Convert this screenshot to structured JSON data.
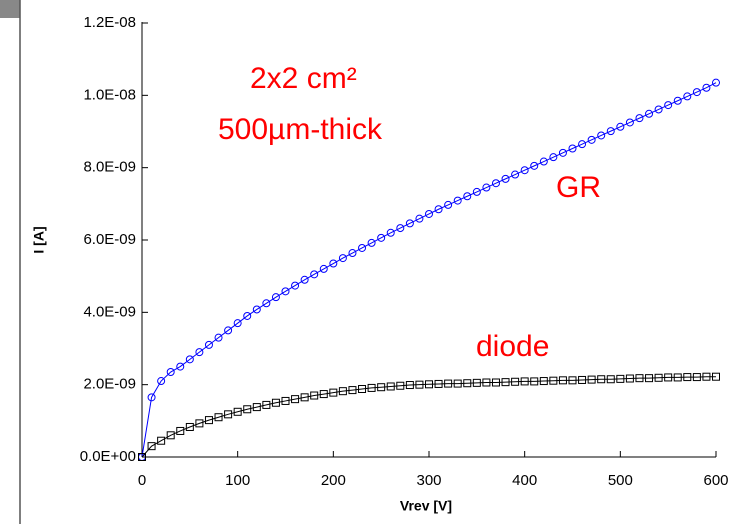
{
  "chart_data": {
    "type": "line",
    "x_label": "Vrev [V]",
    "y_label": "I [A]",
    "x": [
      0,
      10,
      20,
      30,
      40,
      50,
      60,
      70,
      80,
      90,
      100,
      110,
      120,
      130,
      140,
      150,
      160,
      170,
      180,
      190,
      200,
      210,
      220,
      230,
      240,
      250,
      260,
      270,
      280,
      290,
      300,
      310,
      320,
      330,
      340,
      350,
      360,
      370,
      380,
      390,
      400,
      410,
      420,
      430,
      440,
      450,
      460,
      470,
      480,
      490,
      500,
      510,
      520,
      530,
      540,
      550,
      560,
      570,
      580,
      590,
      600
    ],
    "series": [
      {
        "name": "GR",
        "color": "#0000ff",
        "marker": "circle",
        "values": [
          0,
          1.65e-09,
          2.1e-09,
          2.35e-09,
          2.5e-09,
          2.7e-09,
          2.9e-09,
          3.1e-09,
          3.3e-09,
          3.5e-09,
          3.7e-09,
          3.9e-09,
          4.08e-09,
          4.25e-09,
          4.42e-09,
          4.58e-09,
          4.74e-09,
          4.9e-09,
          5.05e-09,
          5.2e-09,
          5.35e-09,
          5.5e-09,
          5.64e-09,
          5.78e-09,
          5.92e-09,
          6.06e-09,
          6.2e-09,
          6.33e-09,
          6.46e-09,
          6.59e-09,
          6.72e-09,
          6.85e-09,
          6.97e-09,
          7.09e-09,
          7.21e-09,
          7.33e-09,
          7.45e-09,
          7.57e-09,
          7.69e-09,
          7.81e-09,
          7.93e-09,
          8.05e-09,
          8.17e-09,
          8.29e-09,
          8.41e-09,
          8.53e-09,
          8.65e-09,
          8.77e-09,
          8.89e-09,
          9.01e-09,
          9.13e-09,
          9.25e-09,
          9.37e-09,
          9.49e-09,
          9.61e-09,
          9.73e-09,
          9.85e-09,
          9.97e-09,
          1.009e-08,
          1.021e-08,
          1.035e-08
        ]
      },
      {
        "name": "diode",
        "color": "#000000",
        "marker": "square",
        "values": [
          0,
          3e-10,
          4.5e-10,
          6e-10,
          7.2e-10,
          8.3e-10,
          9.3e-10,
          1.02e-09,
          1.1e-09,
          1.18e-09,
          1.25e-09,
          1.32e-09,
          1.38e-09,
          1.44e-09,
          1.5e-09,
          1.55e-09,
          1.6e-09,
          1.65e-09,
          1.7e-09,
          1.74e-09,
          1.78e-09,
          1.82e-09,
          1.85e-09,
          1.88e-09,
          1.91e-09,
          1.93e-09,
          1.95e-09,
          1.97e-09,
          1.99e-09,
          2e-09,
          2.01e-09,
          2.02e-09,
          2.03e-09,
          2.03e-09,
          2.04e-09,
          2.05e-09,
          2.06e-09,
          2.06e-09,
          2.07e-09,
          2.08e-09,
          2.09e-09,
          2.09e-09,
          2.1e-09,
          2.11e-09,
          2.12e-09,
          2.12e-09,
          2.13e-09,
          2.14e-09,
          2.15e-09,
          2.15e-09,
          2.16e-09,
          2.17e-09,
          2.18e-09,
          2.18e-09,
          2.19e-09,
          2.2e-09,
          2.2e-09,
          2.21e-09,
          2.21e-09,
          2.22e-09,
          2.22e-09
        ]
      }
    ],
    "annotations": [
      "2x2 cm²",
      "500µm-thick"
    ],
    "xlim": [
      0,
      600
    ],
    "xticks": [
      0,
      100,
      200,
      300,
      400,
      500,
      600
    ],
    "ylim": [
      0,
      1.2e-08
    ],
    "yticks": [
      {
        "value": 0,
        "label": "0.0E+00"
      },
      {
        "value": 2e-09,
        "label": "2.0E-09"
      },
      {
        "value": 4e-09,
        "label": "4.0E-09"
      },
      {
        "value": 6e-09,
        "label": "6.0E-09"
      },
      {
        "value": 8e-09,
        "label": "8.0E-09"
      },
      {
        "value": 1e-08,
        "label": "1.0E-08"
      },
      {
        "value": 1.2e-08,
        "label": "1.2E-08"
      }
    ]
  }
}
